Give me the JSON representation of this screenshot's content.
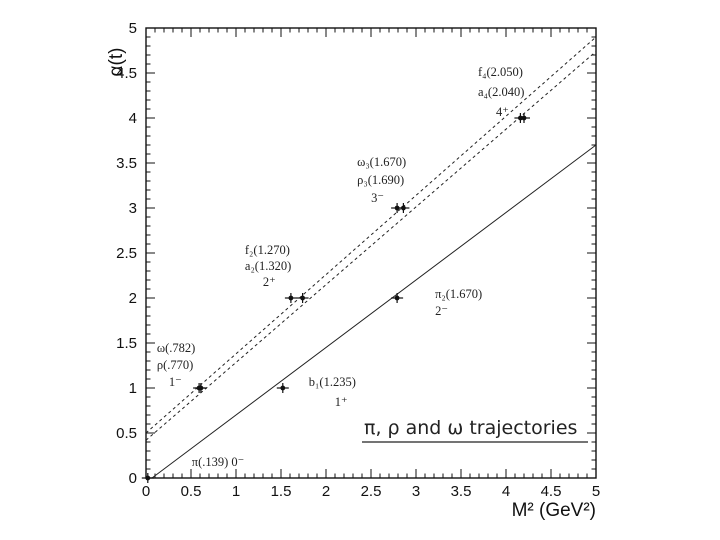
{
  "chart_data": {
    "type": "scatter",
    "title": "",
    "xlabel": "M² (GeV²)",
    "ylabel": "α(t)",
    "xlim": [
      0,
      5
    ],
    "ylim": [
      0,
      5
    ],
    "xticks": [
      "0",
      "0.5",
      "1",
      "1.5",
      "2",
      "2.5",
      "3",
      "3.5",
      "4",
      "4.5",
      "5"
    ],
    "yticks": [
      "0",
      "0.5",
      "1",
      "1.5",
      "2",
      "2.5",
      "3",
      "3.5",
      "4",
      "4.5",
      "5"
    ],
    "grid": false,
    "inset_label": "π, ρ and ω trajectories",
    "series": [
      {
        "style": "dashed",
        "points": [
          {
            "x": 0.61,
            "y": 1,
            "label_lines": [
              "ω(.782)",
              "ρ(.770)",
              "1⁻"
            ]
          },
          {
            "x": 1.61,
            "y": 2,
            "label_lines": [
              "f₂(1.270)",
              "a₂(1.320)",
              "2⁺"
            ]
          },
          {
            "x": 2.79,
            "y": 3,
            "label_lines": [
              "ω₃(1.670)",
              "ρ₃(1.690)",
              "3⁻"
            ]
          },
          {
            "x": 4.2,
            "y": 4,
            "label_lines": [
              "f₄(2.050)",
              "a₄(2.040)",
              "4⁺"
            ]
          }
        ]
      },
      {
        "style": "dashed",
        "points": [
          {
            "x": 0.59,
            "y": 1
          },
          {
            "x": 1.74,
            "y": 2
          },
          {
            "x": 2.86,
            "y": 3
          },
          {
            "x": 4.16,
            "y": 4
          }
        ]
      },
      {
        "style": "solid",
        "points": [
          {
            "x": 0.02,
            "y": 0,
            "label_lines": [
              "π(.139)    0⁻"
            ]
          },
          {
            "x": 1.52,
            "y": 1,
            "label_lines": [
              "b₁(1.235)",
              "1⁺"
            ]
          },
          {
            "x": 2.79,
            "y": 2,
            "label_lines": [
              "π₂(1.670)",
              "2⁻"
            ]
          }
        ]
      }
    ],
    "lines": [
      {
        "style": "dashed",
        "x0": 0,
        "y0": 0.5,
        "x1": 5,
        "y1": 4.9
      },
      {
        "style": "dashed",
        "x0": 0,
        "y0": 0.42,
        "x1": 5,
        "y1": 4.74
      },
      {
        "style": "solid",
        "x0": 0,
        "y0": -0.05,
        "x1": 5,
        "y1": 3.7
      }
    ]
  }
}
